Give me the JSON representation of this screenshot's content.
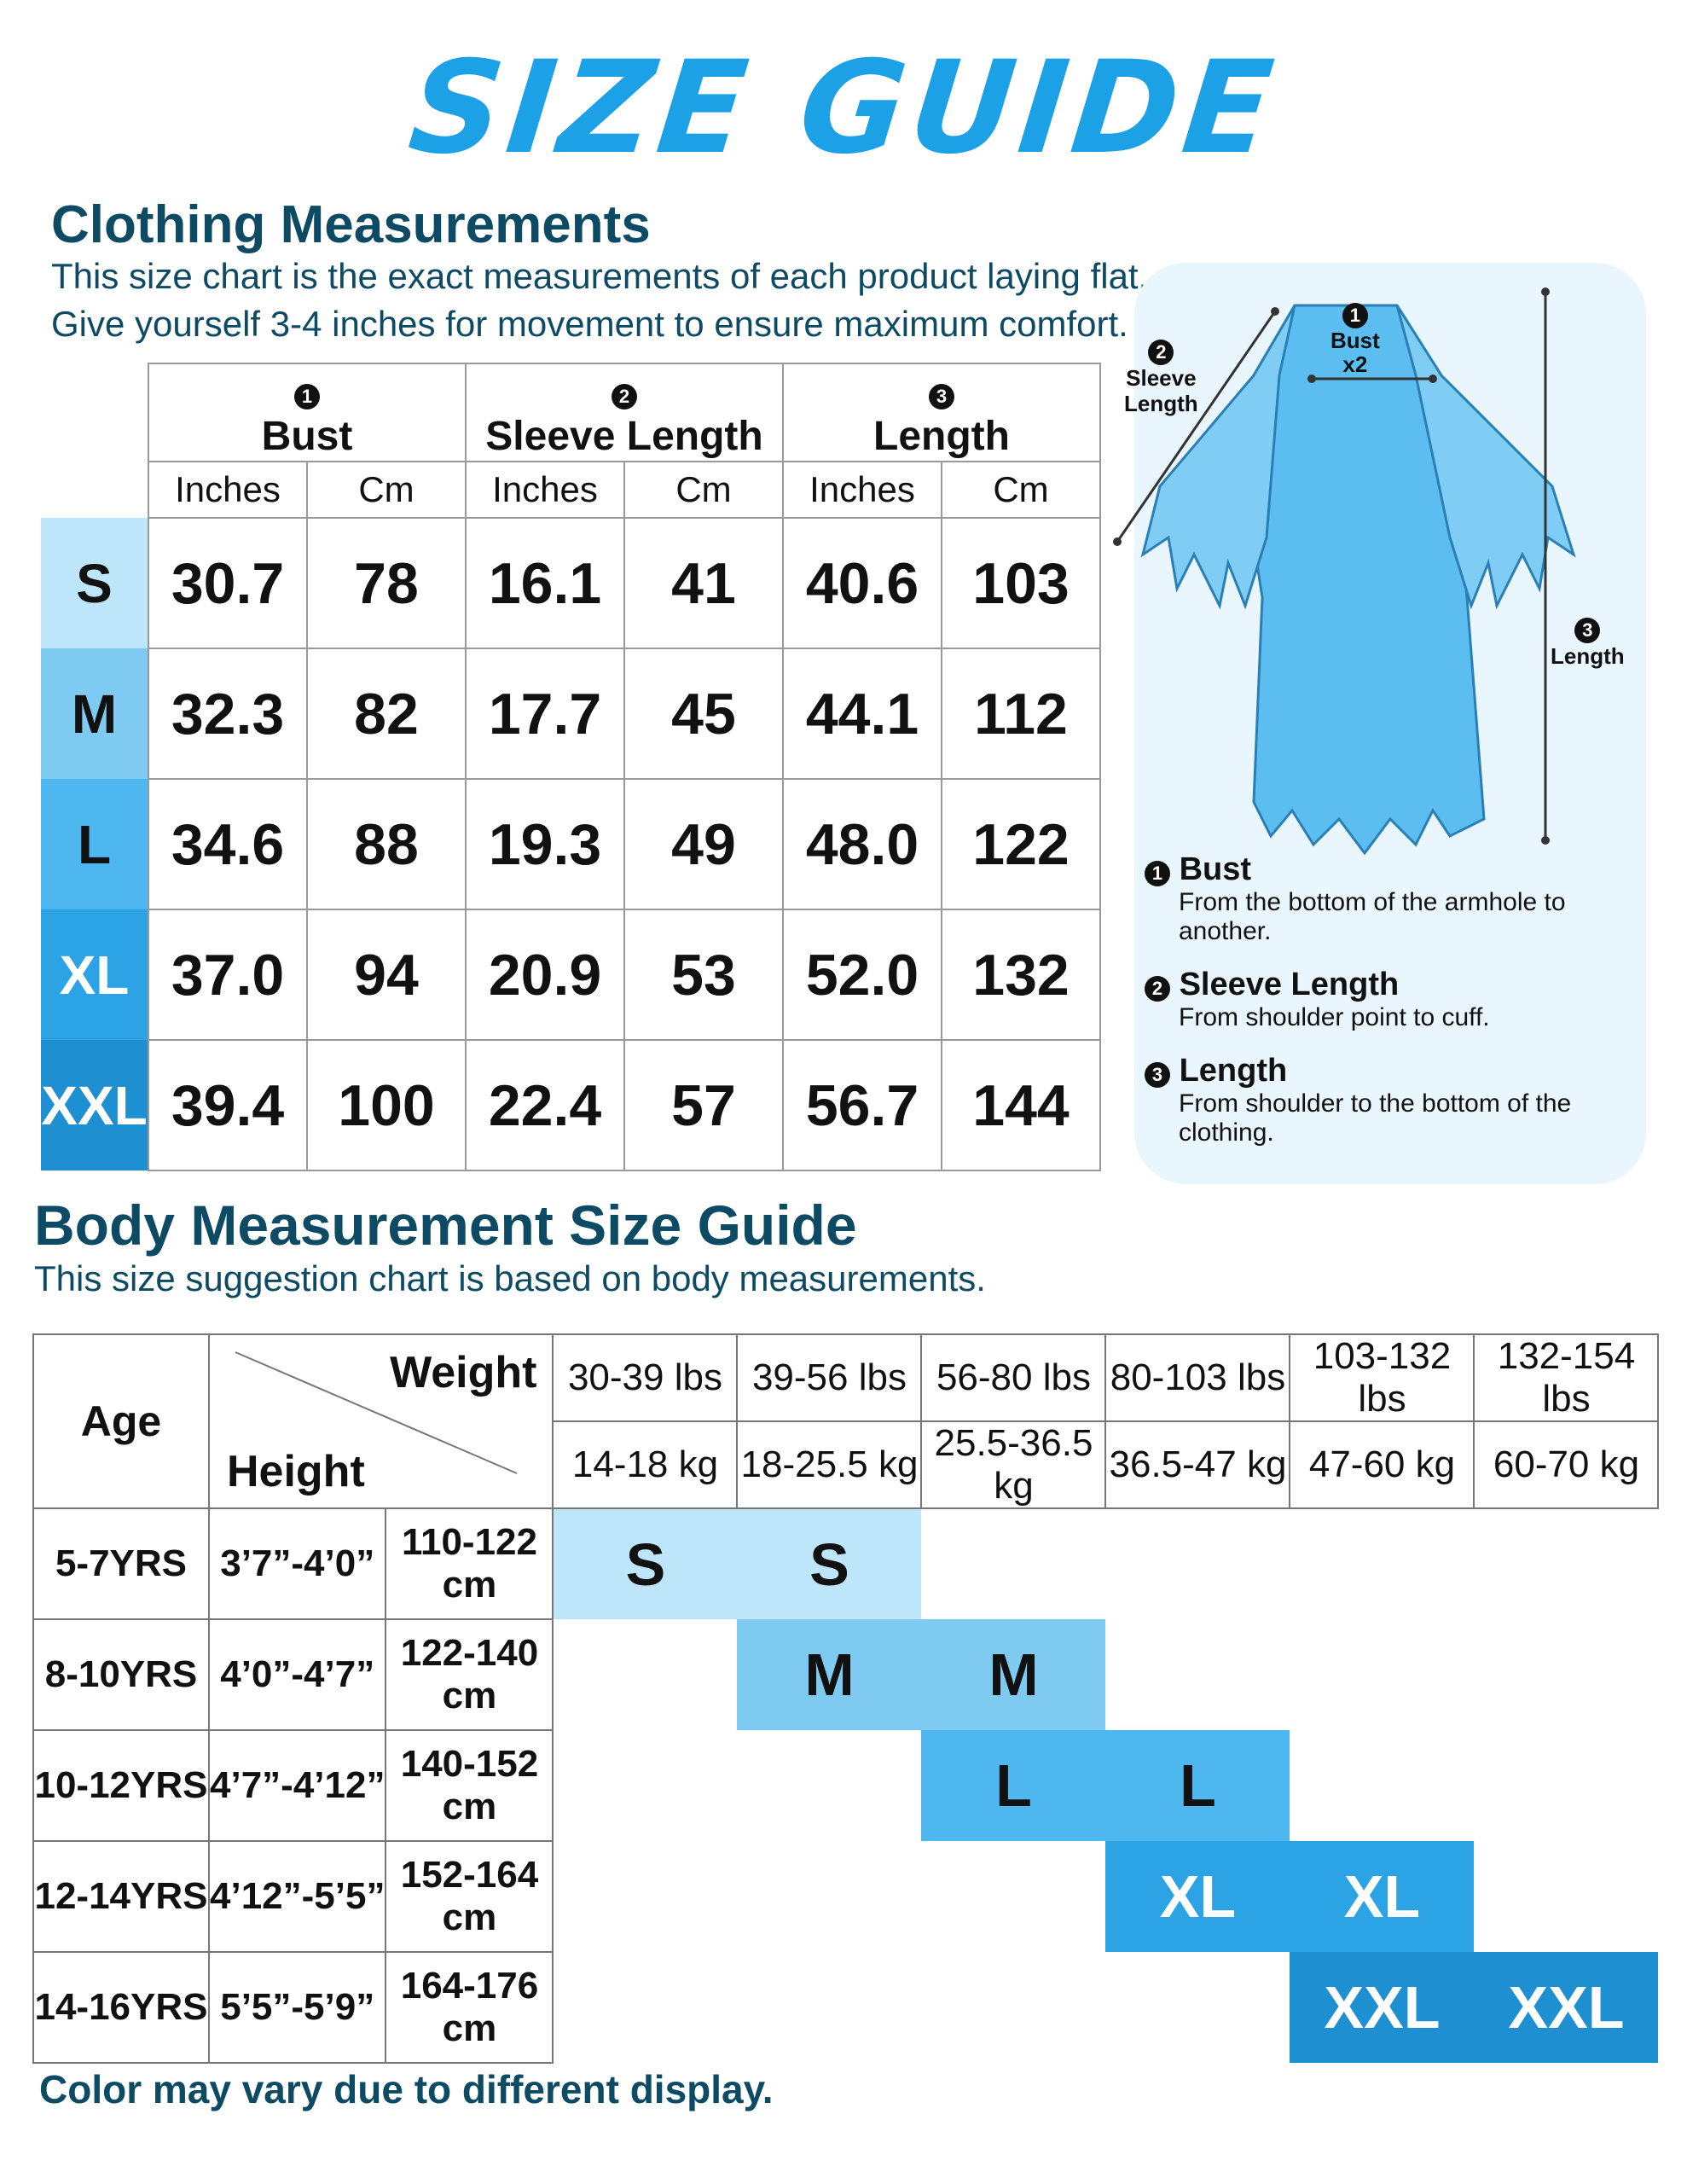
{
  "title": "SIZE GUIDE",
  "clothing": {
    "heading": "Clothing Measurements",
    "line1": "This size chart is the exact measurements of each product laying flat.",
    "line2": "Give yourself 3-4 inches for movement to ensure maximum comfort.",
    "col_nums": [
      "1",
      "2",
      "3"
    ],
    "columns": [
      "Bust",
      "Sleeve Length",
      "Length"
    ],
    "units": [
      "Inches",
      "Cm",
      "Inches",
      "Cm",
      "Inches",
      "Cm"
    ],
    "rows": [
      {
        "size": "S",
        "values": [
          "30.7",
          "78",
          "16.1",
          "41",
          "40.6",
          "103"
        ],
        "color": "#bde6fb"
      },
      {
        "size": "M",
        "values": [
          "32.3",
          "82",
          "17.7",
          "45",
          "44.1",
          "112"
        ],
        "color": "#7fcaf1"
      },
      {
        "size": "L",
        "values": [
          "34.6",
          "88",
          "19.3",
          "49",
          "48.0",
          "122"
        ],
        "color": "#4fb7ef"
      },
      {
        "size": "XL",
        "values": [
          "37.0",
          "94",
          "20.9",
          "53",
          "52.0",
          "132"
        ],
        "color": "#2ba3e5"
      },
      {
        "size": "XXL",
        "values": [
          "39.4",
          "100",
          "22.4",
          "57",
          "56.7",
          "144"
        ],
        "color": "#1e8fd1"
      }
    ]
  },
  "diagram": {
    "bust_num": "1",
    "bust_label": "Bust",
    "bust_x2": "x2",
    "sleeve_num": "2",
    "sleeve_label1": "Sleeve",
    "sleeve_label2": "Length",
    "length_num": "3",
    "length_label": "Length",
    "defs": [
      {
        "num": "1",
        "title": "Bust",
        "desc": "From the bottom of the armhole to another."
      },
      {
        "num": "2",
        "title": "Sleeve Length",
        "desc": "From shoulder point to cuff."
      },
      {
        "num": "3",
        "title": "Length",
        "desc": "From shoulder to the bottom of the clothing."
      }
    ]
  },
  "body": {
    "heading": "Body Measurement Size Guide",
    "sub": "This size suggestion chart is based on body measurements.",
    "age_label": "Age",
    "weight_label": "Weight",
    "height_label": "Height",
    "lbs": [
      "30-39 lbs",
      "39-56 lbs",
      "56-80 lbs",
      "80-103 lbs",
      "103-132 lbs",
      "132-154 lbs"
    ],
    "kg": [
      "14-18 kg",
      "18-25.5 kg",
      "25.5-36.5 kg",
      "36.5-47 kg",
      "47-60 kg",
      "60-70 kg"
    ],
    "rows": [
      {
        "age": "5-7YRS",
        "ft": "3’7”-4’0”",
        "cm": "110-122 cm"
      },
      {
        "age": "8-10YRS",
        "ft": "4’0”-4’7”",
        "cm": "122-140 cm"
      },
      {
        "age": "10-12YRS",
        "ft": "4’7”-4’12”",
        "cm": "140-152 cm"
      },
      {
        "age": "12-14YRS",
        "ft": "4’12”-5’5”",
        "cm": "152-164 cm"
      },
      {
        "age": "14-16YRS",
        "ft": "5’5”-5’9”",
        "cm": "164-176 cm"
      }
    ],
    "sizes": [
      "S",
      "M",
      "L",
      "XL",
      "XXL"
    ],
    "colors": [
      "#bde6fb",
      "#7fcaf1",
      "#4fb7ef",
      "#2ba3e5",
      "#1e8fd1"
    ]
  },
  "footer": "Color may vary due to different display."
}
